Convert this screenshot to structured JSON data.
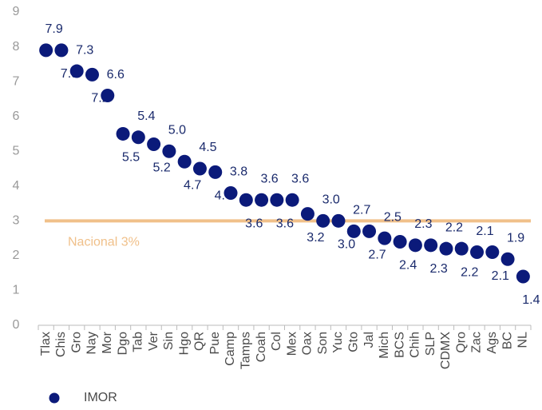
{
  "chart_data": {
    "type": "scatter",
    "categories": [
      "Tlax",
      "Chis",
      "Gro",
      "Nay",
      "Mor",
      "Dgo",
      "Tab",
      "Ver",
      "Sin",
      "Hgo",
      "QR",
      "Pue",
      "Camp",
      "Tamps",
      "Coah",
      "Col",
      "Mex",
      "Oax",
      "Son",
      "Yuc",
      "Gto",
      "Jal",
      "Mich",
      "BCS",
      "Chih",
      "SLP",
      "CDMX",
      "Qro",
      "Zac",
      "Ags",
      "BC",
      "NL"
    ],
    "series": [
      {
        "name": "IMOR",
        "color": "#0b1a7a",
        "values": [
          7.9,
          7.9,
          7.3,
          7.2,
          6.6,
          5.5,
          5.4,
          5.2,
          5.0,
          4.7,
          4.5,
          4.4,
          3.8,
          3.6,
          3.6,
          3.6,
          3.6,
          3.2,
          3.0,
          3.0,
          2.7,
          2.7,
          2.5,
          2.4,
          2.3,
          2.3,
          2.2,
          2.2,
          2.1,
          2.1,
          1.9,
          1.4
        ],
        "value_labels": [
          "7.9",
          "7.9",
          "7.3",
          "7.2",
          "6.6",
          "5.5",
          "5.4",
          "5.2",
          "5.0",
          "4.7",
          "4.5",
          "4.4",
          "3.8",
          "3.6",
          "3.6",
          "3.6",
          "3.6",
          "3.2",
          "3.0",
          "3.0",
          "2.7",
          "2.7",
          "2.5",
          "2.4",
          "2.3",
          "2.3",
          "2.2",
          "2.2",
          "2.1",
          "2.1",
          "1.9",
          "1.4"
        ]
      }
    ],
    "reference_line": {
      "value": 3,
      "label": "Nacional 3%",
      "color": "#f0c08a"
    },
    "ylim": [
      0,
      9
    ],
    "yticks": [
      0,
      1,
      2,
      3,
      4,
      5,
      6,
      7,
      8,
      9
    ],
    "grid": false
  }
}
